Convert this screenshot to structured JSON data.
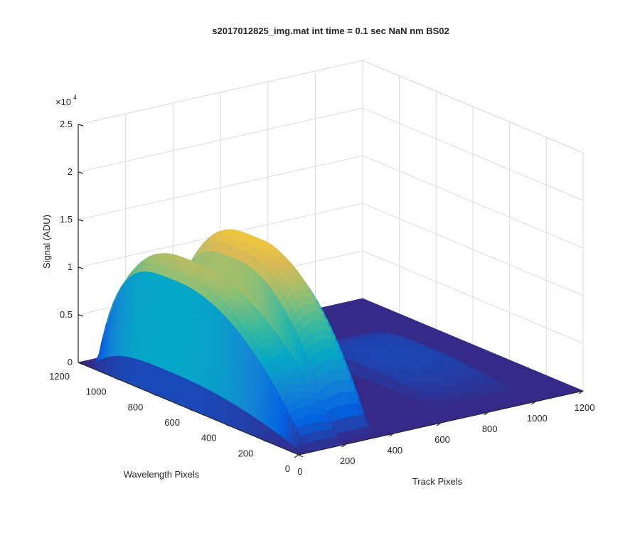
{
  "chart_data": {
    "type": "surface",
    "title": "s2017012825_img.mat int time = 0.1 sec  NaN nm BS02",
    "xlabel": "Track Pixels",
    "ylabel": "Wavelength Pixels",
    "zlabel": "Signal (ADU)",
    "z_exponent_label": "×10",
    "z_exponent_power": "4",
    "xlim": [
      0,
      1200
    ],
    "ylim": [
      0,
      1200
    ],
    "zlim": [
      0,
      25000
    ],
    "x_ticks": [
      "0",
      "200",
      "400",
      "600",
      "800",
      "1000",
      "1200"
    ],
    "y_ticks": [
      "0",
      "200",
      "400",
      "600",
      "800",
      "1000",
      "1200"
    ],
    "z_ticks": [
      "0",
      "0.5",
      "1",
      "1.5",
      "2",
      "2.5"
    ],
    "grid": true,
    "colormap": [
      "#352a87",
      "#0363e1",
      "#1485d4",
      "#06a7c6",
      "#38b99e",
      "#92bf73",
      "#d9ba56",
      "#fcce2e",
      "#f9fb0e"
    ],
    "series": [
      {
        "track_range": [
          30,
          180
        ],
        "peak_wavelength": 700,
        "wavelength_range": [
          0,
          1150
        ],
        "peak_signal": 13800,
        "edge_signal": 12000
      },
      {
        "track_range": [
          190,
          350
        ],
        "peak_wavelength": 580,
        "wavelength_range": [
          50,
          1000
        ],
        "peak_signal": 16500,
        "edge_signal": 13500
      },
      {
        "track_range": [
          700,
          1000
        ],
        "peak_wavelength": 550,
        "wavelength_range": [
          100,
          900
        ],
        "peak_signal": 1200,
        "edge_signal": 800
      }
    ]
  }
}
